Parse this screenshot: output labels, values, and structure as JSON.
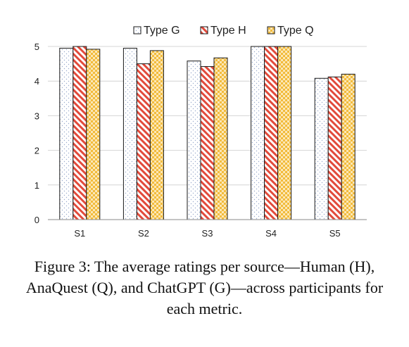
{
  "chart_data": {
    "type": "bar",
    "categories": [
      "S1",
      "S2",
      "S3",
      "S4",
      "S5"
    ],
    "series": [
      {
        "name": "Type G",
        "values": [
          4.95,
          4.95,
          4.58,
          5.0,
          4.08
        ],
        "color": "#dbe4f0",
        "pattern": "dots"
      },
      {
        "name": "Type H",
        "values": [
          5.0,
          4.5,
          4.42,
          5.0,
          4.12
        ],
        "color": "#e24a3b",
        "pattern": "diagonal-stripes"
      },
      {
        "name": "Type Q",
        "values": [
          4.92,
          4.88,
          4.67,
          5.0,
          4.2
        ],
        "color": "#f2bb3c",
        "pattern": "checkerboard"
      }
    ],
    "yticks": [
      0,
      1,
      2,
      3,
      4,
      5
    ],
    "ylim": [
      0,
      5
    ],
    "grid": true,
    "legend": "top-center"
  },
  "caption": "Figure 3: The average ratings per source—Human (H), AnaQuest (Q), and ChatGPT (G)—across participants for each metric."
}
